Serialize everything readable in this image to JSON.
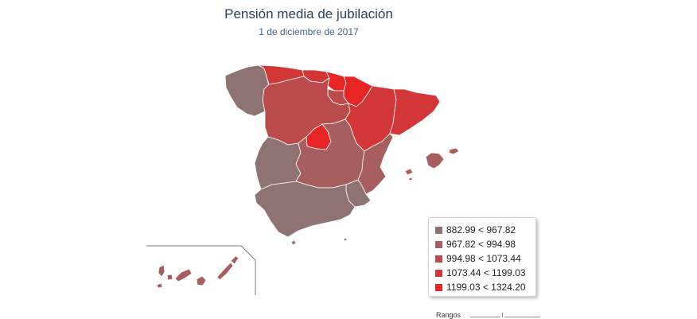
{
  "title": "Pensión media de jubilación",
  "subtitle": "1 de diciembre de 2017",
  "colors": {
    "bin1": "#8f7272",
    "bin2": "#a65e5e",
    "bin3": "#bb4b4b",
    "bin4": "#d33636",
    "bin5": "#e82424"
  },
  "legend": {
    "items": [
      {
        "label": "882.99 < 967.82",
        "color": "#8f7272"
      },
      {
        "label": "967.82 < 994.98",
        "color": "#a65e5e"
      },
      {
        "label": "994.98 < 1073.44",
        "color": "#bb4b4b"
      },
      {
        "label": "1073.44 < 1199.03",
        "color": "#d33636"
      },
      {
        "label": "1199.03 < 1324.20",
        "color": "#e82424"
      }
    ]
  },
  "slider": {
    "label": "Rangos"
  }
}
